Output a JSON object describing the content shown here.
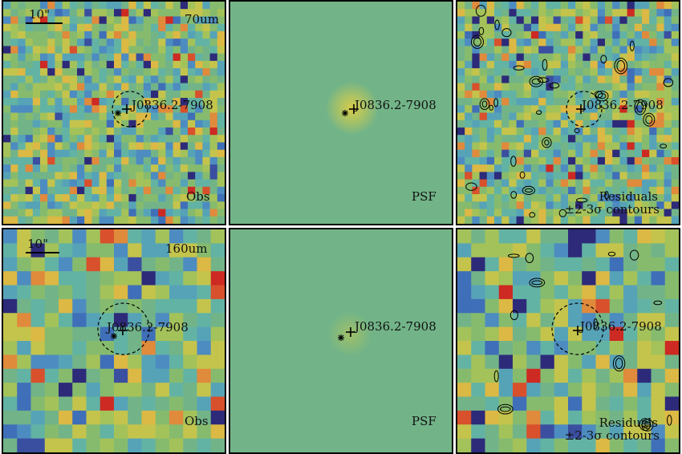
{
  "figure": {
    "source_name": "J0836.2-7908",
    "bands": [
      {
        "band_label": "70um",
        "scale_label": "10\"",
        "obs_label": "Obs",
        "psf_label": "PSF",
        "residual_label_line1": "Residuals",
        "residual_label_line2": "±2-3σ contours"
      },
      {
        "band_label": "160um",
        "scale_label": "10\"",
        "obs_label": "Obs",
        "psf_label": "PSF",
        "residual_label_line1": "Residuals",
        "residual_label_line2": "±2-3σ contours"
      }
    ]
  },
  "colors": {
    "background_green": "#72b488",
    "psf_core": "#c8cc55",
    "contour": "#000000",
    "circle": "#000000"
  }
}
